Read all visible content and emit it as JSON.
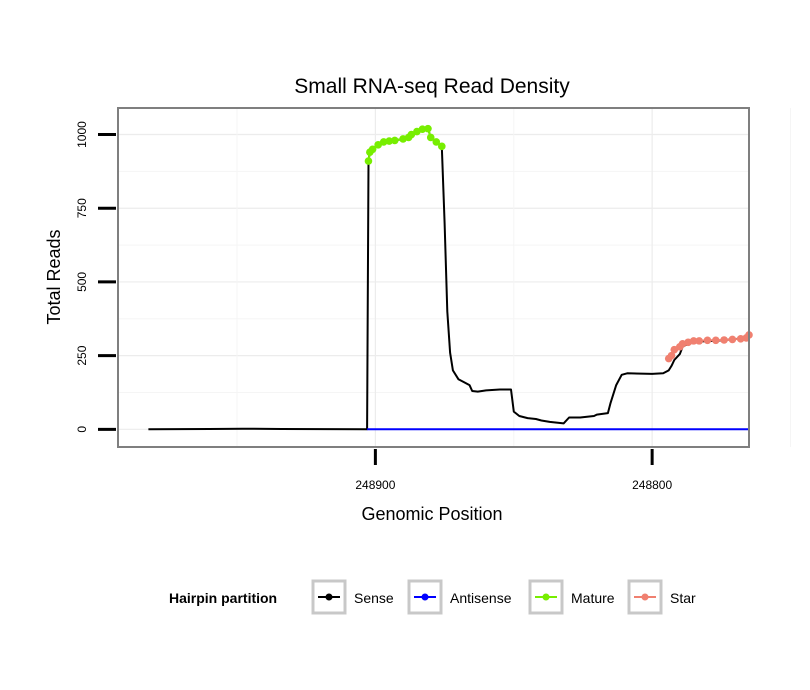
{
  "chart_data": {
    "type": "line",
    "title": "Small RNA-seq Read Density",
    "xlabel": "Genomic Position",
    "ylabel": "Total Reads",
    "x_reversed": true,
    "xlim": [
      248993,
      248765
    ],
    "ylim": [
      -60,
      1090
    ],
    "x_ticks": [
      248900,
      248800
    ],
    "x_tick_labels": [
      "248900",
      "248800"
    ],
    "y_ticks": [
      0,
      250,
      500,
      750,
      1000
    ],
    "y_tick_labels": [
      "0",
      "250",
      "500",
      "750",
      "1000"
    ],
    "grid": true,
    "legend": {
      "title": "Hairpin partition",
      "placement": "bottom",
      "entries": [
        {
          "label": "Sense",
          "color": "#000000"
        },
        {
          "label": "Antisense",
          "color": "#0000ff"
        },
        {
          "label": "Mature",
          "color": "#77ee00"
        },
        {
          "label": "Star",
          "color": "#f08070"
        }
      ]
    },
    "series": [
      {
        "name": "Sense",
        "color": "#000000",
        "points": [
          [
            248982,
            0
          ],
          [
            248960,
            1
          ],
          [
            248948,
            2
          ],
          [
            248934,
            1
          ],
          [
            248903,
            0
          ],
          [
            248902.5,
            910
          ],
          [
            248902,
            940
          ],
          [
            248901,
            950
          ],
          [
            248899,
            965
          ],
          [
            248897,
            975
          ],
          [
            248893,
            980
          ],
          [
            248890,
            985
          ],
          [
            248888,
            990
          ],
          [
            248887,
            1000
          ],
          [
            248885,
            1010
          ],
          [
            248883,
            1018
          ],
          [
            248881,
            1020
          ],
          [
            248880,
            990
          ],
          [
            248878,
            975
          ],
          [
            248876,
            960
          ],
          [
            248875,
            700
          ],
          [
            248874,
            400
          ],
          [
            248873,
            260
          ],
          [
            248872,
            200
          ],
          [
            248870,
            170
          ],
          [
            248868,
            160
          ],
          [
            248866,
            150
          ],
          [
            248865,
            130
          ],
          [
            248863,
            128
          ],
          [
            248860,
            132
          ],
          [
            248855,
            135
          ],
          [
            248851,
            135
          ],
          [
            248850,
            60
          ],
          [
            248848,
            45
          ],
          [
            248845,
            38
          ],
          [
            248842,
            35
          ],
          [
            248840,
            30
          ],
          [
            248837,
            25
          ],
          [
            248832,
            20
          ],
          [
            248830,
            40
          ],
          [
            248826,
            40
          ],
          [
            248821,
            45
          ],
          [
            248820,
            50
          ],
          [
            248816,
            55
          ],
          [
            248815,
            90
          ],
          [
            248813,
            150
          ],
          [
            248811,
            185
          ],
          [
            248809,
            190
          ],
          [
            248800,
            188
          ],
          [
            248796,
            190
          ],
          [
            248794,
            200
          ],
          [
            248793,
            215
          ],
          [
            248792,
            235
          ],
          [
            248790,
            255
          ],
          [
            248789,
            280
          ],
          [
            248787,
            290
          ],
          [
            248783,
            298
          ],
          [
            248778,
            300
          ],
          [
            248774,
            302
          ],
          [
            248771,
            306
          ],
          [
            248766,
            308
          ],
          [
            248765,
            320
          ]
        ]
      },
      {
        "name": "Antisense",
        "color": "#0000ff",
        "points": [
          [
            248903,
            0
          ],
          [
            248765,
            0
          ]
        ]
      },
      {
        "name": "Mature",
        "color": "#77ee00",
        "points": [
          [
            248902.5,
            910
          ],
          [
            248902,
            940
          ],
          [
            248901,
            950
          ],
          [
            248899,
            965
          ],
          [
            248897,
            975
          ],
          [
            248895,
            978
          ],
          [
            248893,
            980
          ],
          [
            248890,
            985
          ],
          [
            248888,
            990
          ],
          [
            248887,
            1000
          ],
          [
            248885,
            1010
          ],
          [
            248883,
            1018
          ],
          [
            248881,
            1020
          ],
          [
            248880,
            990
          ],
          [
            248878,
            975
          ],
          [
            248876,
            960
          ]
        ]
      },
      {
        "name": "Star",
        "color": "#f08070",
        "points": [
          [
            248794,
            240
          ],
          [
            248793,
            250
          ],
          [
            248792,
            270
          ],
          [
            248790,
            280
          ],
          [
            248789,
            290
          ],
          [
            248787,
            295
          ],
          [
            248785,
            300
          ],
          [
            248783,
            300
          ],
          [
            248780,
            302
          ],
          [
            248777,
            302
          ],
          [
            248774,
            303
          ],
          [
            248771,
            305
          ],
          [
            248768,
            307
          ],
          [
            248766,
            310
          ],
          [
            248765,
            320
          ]
        ]
      }
    ]
  }
}
